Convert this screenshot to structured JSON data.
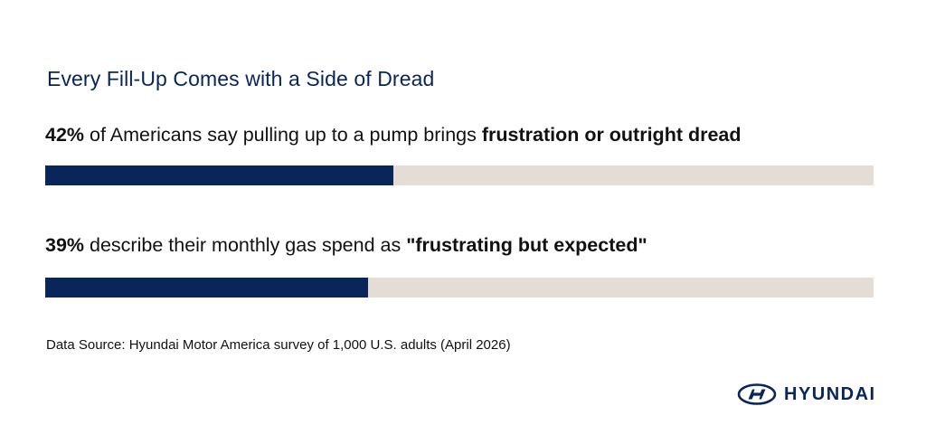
{
  "title": "Every Fill-Up Comes with a Side of Dread",
  "chart_data": {
    "type": "bar",
    "orientation": "horizontal",
    "ylim": [
      0,
      100
    ],
    "series": [
      {
        "value": 42,
        "value_label": "42%",
        "text_before_emphasis": " of Americans say pulling up to a pump brings ",
        "emphasis": "frustration or outright dread"
      },
      {
        "value": 39,
        "value_label": "39%",
        "text_before_emphasis": " describe their monthly gas spend as ",
        "emphasis": "\"frustrating but expected\""
      }
    ]
  },
  "source": "Data Source: Hyundai Motor America survey of 1,000 U.S. adults (April 2026)",
  "brand": {
    "name": "HYUNDAI",
    "logo_icon": "hyundai-emblem"
  },
  "colors": {
    "primary_navy": "#0a2559",
    "track_beige": "#e4ddd5"
  }
}
